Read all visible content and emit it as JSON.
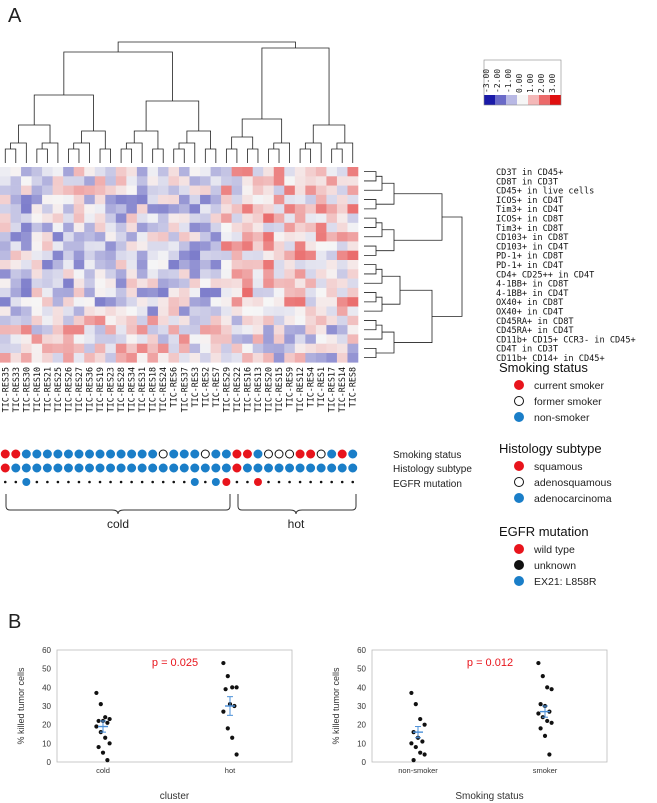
{
  "panel_a": {
    "label": "A",
    "scale_ticks": [
      "-3.00",
      "-2.00",
      "-1.00",
      "0.00",
      "1.00",
      "2.00",
      "3.00"
    ],
    "scale_colors": [
      "#1a1aa8",
      "#6a6ac8",
      "#b8b8e4",
      "#f6f6f6",
      "#f4b8b8",
      "#ec6a6a",
      "#e01010"
    ],
    "samples": [
      "TIC-RES35",
      "TIC-RES33",
      "TIC-RES30",
      "TIC-RES10",
      "TIC-RES21",
      "TIC-RES25",
      "TIC-RES26",
      "TIC-RES27",
      "TIC-RES36",
      "TIC-RES19",
      "TIC-RES23",
      "TIC-RES28",
      "TIC-RES34",
      "TIC-RES31",
      "TIC-RES18",
      "TIC-RES24",
      "TIC-RES6",
      "TIC-RES37",
      "TIC-RES3",
      "TIC-RES2",
      "TIC-RES7",
      "TIC-RES29",
      "TIC-RES22",
      "TIC-RES16",
      "TIC-RES13",
      "TIC-RES20",
      "TIC-RES15",
      "TIC-RES9",
      "TIC-RES12",
      "TIC-RES4",
      "TIC-RES1",
      "TIC-RES17",
      "TIC-RES14",
      "TIC-RES8"
    ],
    "markers": [
      "CD3T in CD45+",
      "CD8T in CD3T",
      "CD45+ in live cells",
      "ICOS+ in CD4T",
      "Tim3+ in CD4T",
      "ICOS+ in CD8T",
      "Tim3+ in CD8T",
      "CD103+ in CD8T",
      "CD103+ in CD4T",
      "PD-1+ in CD8T",
      "PD-1+ in CD4T",
      "CD4+ CD25++ in CD4T",
      "4-1BB+ in CD8T",
      "4-1BB+ in CD4T",
      "OX40+ in CD8T",
      "OX40+ in CD4T",
      "CD45RA+ in CD8T",
      "CD45RA+ in CD4T",
      "CD11b+ CD15+ CCR3- in CD45+",
      "CD4T in CD3T",
      "CD11b+ CD14+ in CD45+"
    ],
    "row_labels": {
      "smoking": "Smoking status",
      "histology": "Histology subtype",
      "egfr": "EGFR mutation"
    },
    "smoking_status": [
      "current",
      "current",
      "non",
      "non",
      "non",
      "non",
      "non",
      "non",
      "non",
      "non",
      "non",
      "non",
      "non",
      "non",
      "non",
      "former",
      "non",
      "non",
      "non",
      "former",
      "non",
      "non",
      "current",
      "current",
      "non",
      "former",
      "former",
      "former",
      "current",
      "current",
      "former",
      "non",
      "current",
      "non"
    ],
    "histology": [
      "squamous",
      "adeno",
      "adeno",
      "adeno",
      "adeno",
      "adeno",
      "adeno",
      "adeno",
      "adeno",
      "adeno",
      "adeno",
      "adeno",
      "adeno",
      "adeno",
      "adeno",
      "adeno",
      "adeno",
      "adeno",
      "adeno",
      "adeno",
      "adeno",
      "adeno",
      "squamous",
      "adeno",
      "adeno",
      "adeno",
      "adeno",
      "adeno",
      "adeno",
      "adeno",
      "adeno",
      "adeno",
      "adeno",
      "adeno"
    ],
    "egfr": [
      "unknown",
      "unknown",
      "ex21",
      "unknown",
      "unknown",
      "unknown",
      "unknown",
      "unknown",
      "unknown",
      "unknown",
      "unknown",
      "unknown",
      "unknown",
      "unknown",
      "unknown",
      "unknown",
      "unknown",
      "unknown",
      "ex21",
      "unknown",
      "ex21",
      "wild",
      "unknown",
      "unknown",
      "wild",
      "unknown",
      "unknown",
      "unknown",
      "unknown",
      "unknown",
      "unknown",
      "unknown",
      "unknown",
      "unknown"
    ],
    "cluster_labels": {
      "cold": "cold",
      "hot": "hot"
    },
    "legend": {
      "smoking": {
        "title": "Smoking status",
        "items": [
          {
            "key": "current",
            "label": "current smoker",
            "color": "#e8141c"
          },
          {
            "key": "former",
            "label": "former smoker",
            "color": "#ffffff"
          },
          {
            "key": "non",
            "label": "non-smoker",
            "color": "#1a7ec8"
          }
        ]
      },
      "histology": {
        "title": "Histology subtype",
        "items": [
          {
            "key": "squamous",
            "label": "squamous",
            "color": "#e8141c"
          },
          {
            "key": "adenosquamous",
            "label": "adenosquamous",
            "color": "#ffffff"
          },
          {
            "key": "adeno",
            "label": "adenocarcinoma",
            "color": "#1a7ec8"
          }
        ]
      },
      "egfr": {
        "title": "EGFR mutation",
        "items": [
          {
            "key": "wild",
            "label": "wild type",
            "color": "#e8141c"
          },
          {
            "key": "unknown",
            "label": "unknown",
            "color": "#111111"
          },
          {
            "key": "ex21",
            "label": "EX21: L858R",
            "color": "#1a7ec8"
          }
        ]
      }
    }
  },
  "panel_b": {
    "label": "B"
  },
  "chart_data": [
    {
      "type": "scatter",
      "title": "",
      "annotation": "p = 0.025",
      "annotation_color": "#e8141c",
      "xlabel": "cluster",
      "ylabel": "% killed tumor cells",
      "categories": [
        "cold",
        "hot"
      ],
      "ylim": [
        0,
        60
      ],
      "yticks": [
        0,
        10,
        20,
        30,
        40,
        50,
        60
      ],
      "series": [
        {
          "name": "cold",
          "values": [
            37,
            31,
            24,
            23,
            22,
            22,
            21,
            19,
            16,
            13,
            10,
            8,
            5,
            1
          ]
        },
        {
          "name": "hot",
          "values": [
            53,
            46,
            40,
            40,
            39,
            31,
            30,
            27,
            18,
            13,
            4
          ]
        }
      ],
      "mean_sem": [
        {
          "mean": 19,
          "sem": 3
        },
        {
          "mean": 30,
          "sem": 5
        }
      ],
      "error_color": "#4a8fd8"
    },
    {
      "type": "scatter",
      "title": "",
      "annotation": "p = 0.012",
      "annotation_color": "#e8141c",
      "xlabel": "Smoking status",
      "ylabel": "% killed tumor cells",
      "categories": [
        "non-smoker",
        "smoker"
      ],
      "ylim": [
        0,
        60
      ],
      "yticks": [
        0,
        10,
        20,
        30,
        40,
        50,
        60
      ],
      "series": [
        {
          "name": "non-smoker",
          "values": [
            37,
            31,
            23,
            20,
            16,
            13,
            11,
            10,
            8,
            5,
            4,
            1
          ]
        },
        {
          "name": "smoker",
          "values": [
            53,
            46,
            40,
            39,
            31,
            30,
            27,
            26,
            24,
            22,
            21,
            18,
            14,
            4
          ]
        }
      ],
      "mean_sem": [
        {
          "mean": 16,
          "sem": 3
        },
        {
          "mean": 27,
          "sem": 3
        }
      ],
      "error_color": "#4a8fd8"
    }
  ]
}
